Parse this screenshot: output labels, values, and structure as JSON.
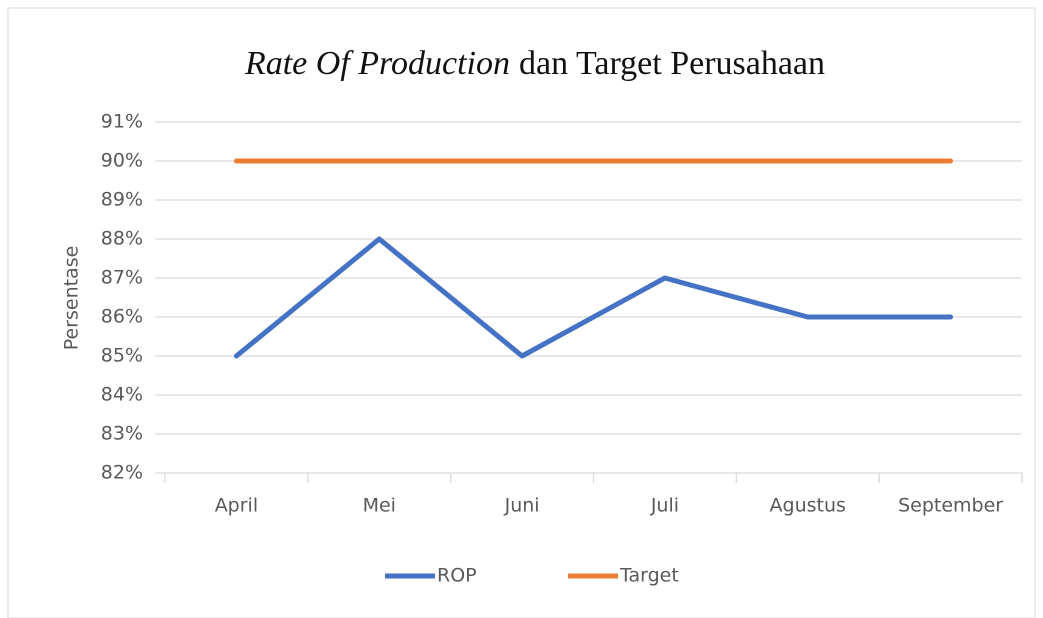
{
  "chart_data": {
    "type": "line",
    "title": [
      "Rate Of Production",
      "dan Target Perusahaan"
    ],
    "y_label": "Persentase",
    "categories": [
      "April",
      "Mei",
      "Juni",
      "Juli",
      "Agustus",
      "September"
    ],
    "series": [
      {
        "name": "ROP",
        "color": "#4472c4",
        "values": [
          85,
          88,
          85,
          87,
          86,
          86
        ]
      },
      {
        "name": "Target",
        "color": "#ed7d31",
        "values": [
          90,
          90,
          90,
          90,
          90,
          90
        ]
      }
    ],
    "ylim": [
      82,
      91
    ],
    "yticks": [
      {
        "value": 82,
        "label": "82%"
      },
      {
        "value": 83,
        "label": "83%"
      },
      {
        "value": 84,
        "label": "84%"
      },
      {
        "value": 85,
        "label": "85%"
      },
      {
        "value": 86,
        "label": "86%"
      },
      {
        "value": 87,
        "label": "87%"
      },
      {
        "value": 88,
        "label": "88%"
      },
      {
        "value": 89,
        "label": "89%"
      },
      {
        "value": 90,
        "label": "90%"
      },
      {
        "value": 91,
        "label": "91%"
      }
    ],
    "grid": true,
    "legend": "bottom"
  }
}
